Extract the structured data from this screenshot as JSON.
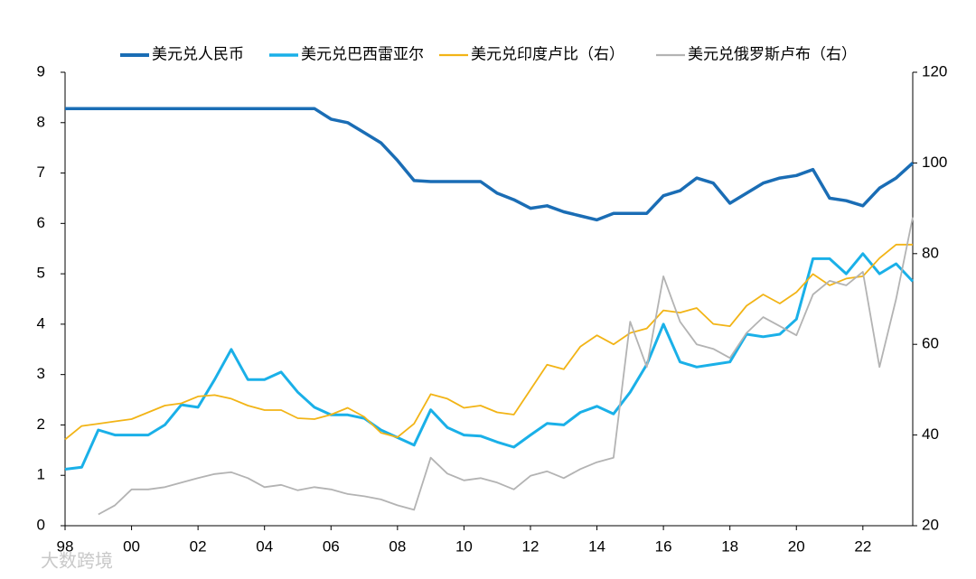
{
  "chart_data": {
    "type": "line",
    "watermark": "大数跨境",
    "x": [
      1998.0,
      1998.5,
      1999.0,
      1999.5,
      2000.0,
      2000.5,
      2001.0,
      2001.5,
      2002.0,
      2002.5,
      2003.0,
      2003.5,
      2004.0,
      2004.5,
      2005.0,
      2005.5,
      2006.0,
      2006.5,
      2007.0,
      2007.5,
      2008.0,
      2008.5,
      2009.0,
      2009.5,
      2010.0,
      2010.5,
      2011.0,
      2011.5,
      2012.0,
      2012.5,
      2013.0,
      2013.5,
      2014.0,
      2014.5,
      2015.0,
      2015.5,
      2016.0,
      2016.5,
      2017.0,
      2017.5,
      2018.0,
      2018.5,
      2019.0,
      2019.5,
      2020.0,
      2020.5,
      2021.0,
      2021.5,
      2022.0,
      2022.5,
      2023.0,
      2023.5
    ],
    "xlim": [
      1998,
      2023.5
    ],
    "xticks": [
      {
        "value": 1998,
        "label": "98"
      },
      {
        "value": 2000,
        "label": "00"
      },
      {
        "value": 2002,
        "label": "02"
      },
      {
        "value": 2004,
        "label": "04"
      },
      {
        "value": 2006,
        "label": "06"
      },
      {
        "value": 2008,
        "label": "08"
      },
      {
        "value": 2010,
        "label": "10"
      },
      {
        "value": 2012,
        "label": "12"
      },
      {
        "value": 2014,
        "label": "14"
      },
      {
        "value": 2016,
        "label": "16"
      },
      {
        "value": 2018,
        "label": "18"
      },
      {
        "value": 2020,
        "label": "20"
      },
      {
        "value": 2022,
        "label": "22"
      }
    ],
    "ylim": [
      0,
      9
    ],
    "yticks": [
      0,
      1,
      2,
      3,
      4,
      5,
      6,
      7,
      8,
      9
    ],
    "y2lim": [
      20,
      120
    ],
    "y2ticks": [
      20,
      40,
      60,
      80,
      100,
      120
    ],
    "grid": false,
    "legend": "top",
    "series": [
      {
        "name": "美元兑人民币",
        "color": "#1a6db5",
        "width": 3.5,
        "values": [
          8.28,
          8.28,
          8.28,
          8.28,
          8.28,
          8.28,
          8.28,
          8.28,
          8.28,
          8.28,
          8.28,
          8.28,
          8.28,
          8.28,
          8.28,
          8.28,
          8.07,
          8.0,
          7.8,
          7.6,
          7.25,
          6.85,
          6.83,
          6.83,
          6.83,
          6.83,
          6.6,
          6.47,
          6.3,
          6.35,
          6.23,
          6.15,
          6.07,
          6.2,
          6.2,
          6.2,
          6.55,
          6.65,
          6.9,
          6.8,
          6.4,
          6.6,
          6.8,
          6.9,
          6.95,
          7.07,
          6.5,
          6.45,
          6.35,
          6.7,
          6.9,
          7.2
        ]
      },
      {
        "name": "美元兑巴西雷亚尔",
        "color": "#1ab0e8",
        "width": 3,
        "values": [
          1.12,
          1.16,
          1.9,
          1.8,
          1.8,
          1.8,
          2.0,
          2.4,
          2.35,
          2.9,
          3.5,
          2.9,
          2.9,
          3.05,
          2.65,
          2.35,
          2.2,
          2.2,
          2.13,
          1.9,
          1.75,
          1.6,
          2.3,
          1.95,
          1.8,
          1.78,
          1.66,
          1.56,
          1.8,
          2.03,
          2.0,
          2.25,
          2.37,
          2.22,
          2.65,
          3.2,
          4.0,
          3.25,
          3.15,
          3.2,
          3.25,
          3.8,
          3.75,
          3.8,
          4.1,
          5.3,
          5.3,
          5.0,
          5.4,
          5.0,
          5.2,
          4.85
        ]
      },
      {
        "name": "美元兑印度卢比（右）",
        "color": "#f2b416",
        "width": 1.8,
        "axis": "y2",
        "values": [
          39,
          42,
          42.5,
          43,
          43.5,
          45,
          46.5,
          47,
          48.5,
          48.8,
          48,
          46.5,
          45.5,
          45.5,
          43.7,
          43.5,
          44.5,
          46,
          44,
          40.5,
          39.5,
          42.5,
          49,
          48,
          46,
          46.5,
          45,
          44.5,
          50,
          55.5,
          54.5,
          59.5,
          62,
          60,
          62.5,
          63.5,
          67.5,
          67,
          68,
          64.5,
          64,
          68.5,
          71,
          69,
          71.5,
          75.5,
          73,
          74.5,
          75,
          79,
          82,
          82
        ]
      },
      {
        "name": "美元兑俄罗斯卢布（右）",
        "color": "#b3b3b3",
        "width": 1.8,
        "axis": "y2",
        "values": [
          null,
          null,
          22.5,
          24.5,
          28,
          28,
          28.5,
          29.5,
          30.5,
          31.4,
          31.8,
          30.5,
          28.5,
          29,
          27.8,
          28.5,
          28,
          27,
          26.5,
          25.8,
          24.5,
          23.5,
          35,
          31.5,
          30,
          30.5,
          29.5,
          28,
          31,
          32,
          30.5,
          32.5,
          34,
          35,
          65,
          55,
          75,
          65,
          60,
          59,
          57,
          62.5,
          66,
          64,
          62,
          71,
          74,
          73,
          76,
          55,
          70,
          88
        ]
      }
    ]
  }
}
